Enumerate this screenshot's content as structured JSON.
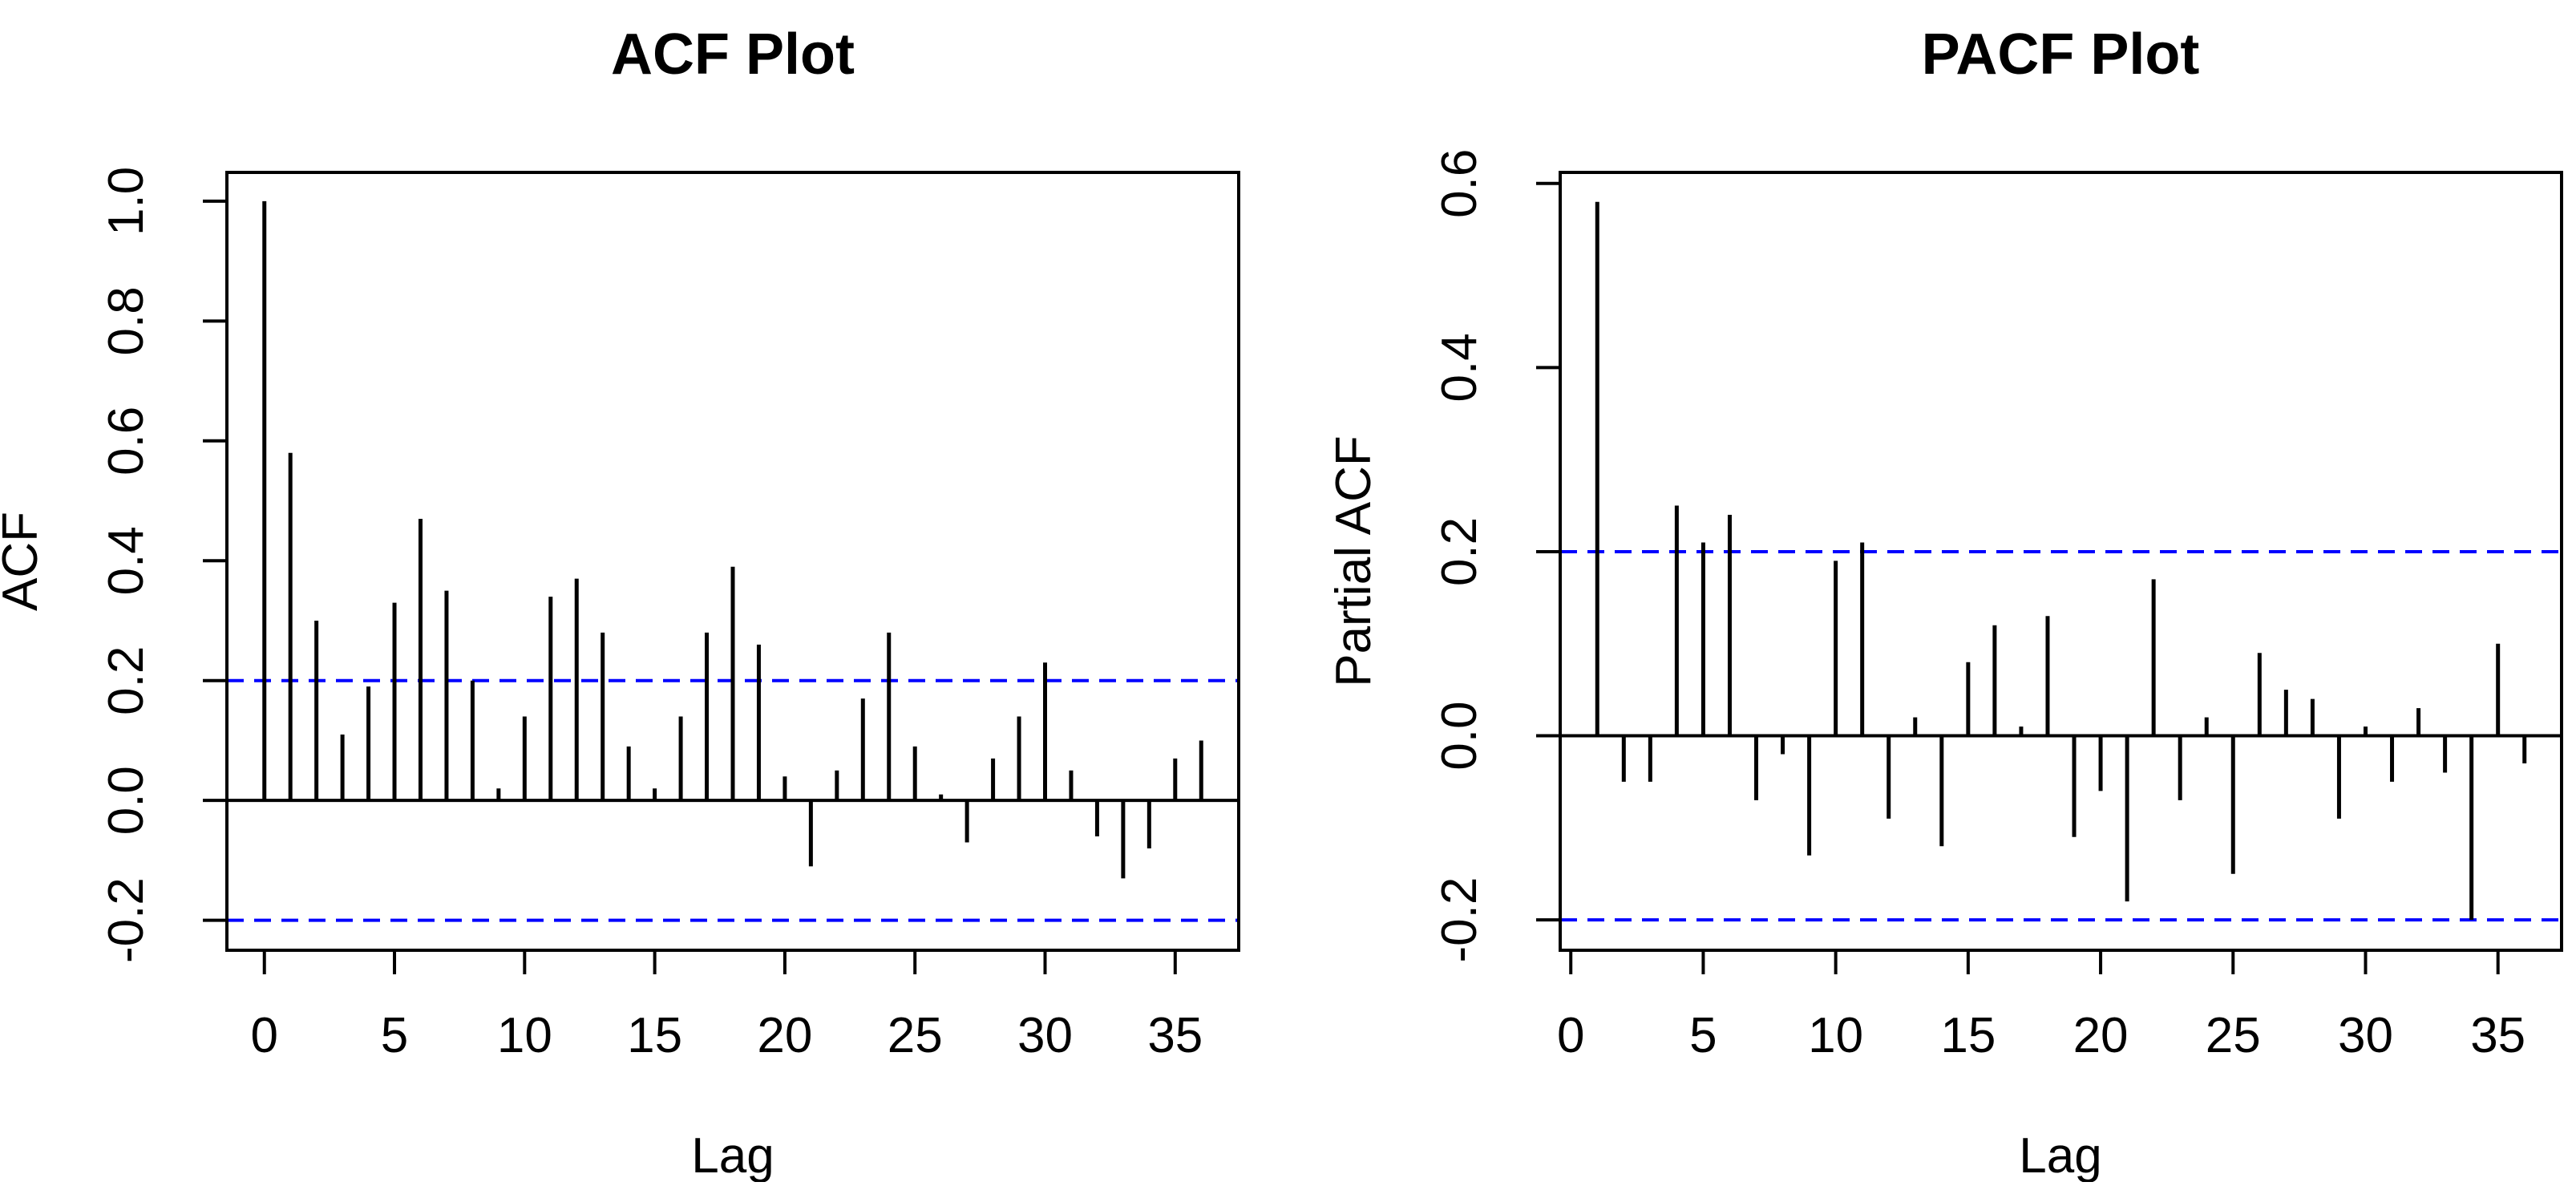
{
  "figure": {
    "background": "#ffffff",
    "bar_color": "#000000",
    "axis_color": "#000000",
    "conf_color": "#0000ff"
  },
  "chart_data": [
    {
      "type": "bar",
      "title": "ACF Plot",
      "xlabel": "Lag",
      "ylabel": "ACF",
      "x": [
        0,
        1,
        2,
        3,
        4,
        5,
        6,
        7,
        8,
        9,
        10,
        11,
        12,
        13,
        14,
        15,
        16,
        17,
        18,
        19,
        20,
        21,
        22,
        23,
        24,
        25,
        26,
        27,
        28,
        29,
        30,
        31,
        32,
        33,
        34,
        35,
        36
      ],
      "values": [
        1.0,
        0.58,
        0.3,
        0.11,
        0.19,
        0.33,
        0.47,
        0.35,
        0.2,
        0.02,
        0.14,
        0.34,
        0.37,
        0.28,
        0.09,
        0.02,
        0.14,
        0.28,
        0.39,
        0.26,
        0.04,
        -0.11,
        0.05,
        0.17,
        0.28,
        0.09,
        0.01,
        -0.07,
        0.07,
        0.14,
        0.23,
        0.05,
        -0.06,
        -0.13,
        -0.08,
        0.07,
        0.1
      ],
      "xticks": [
        "0",
        "5",
        "10",
        "15",
        "20",
        "25",
        "30",
        "35"
      ],
      "yticks": [
        "1.0",
        "0.8",
        "0.6",
        "0.4",
        "0.2",
        "0.0",
        "-0.2"
      ],
      "xlim": [
        -1.44,
        37.44
      ],
      "ylim": [
        -0.25,
        1.048
      ],
      "conf_bounds": [
        0.2,
        -0.2
      ],
      "conf_line_style": "dashed",
      "conf_color": "#0000ff",
      "bar_color": "#000000",
      "grid": false,
      "legend": null
    },
    {
      "type": "bar",
      "title": "PACF Plot",
      "xlabel": "Lag",
      "ylabel": "Partial ACF",
      "x": [
        1,
        2,
        3,
        4,
        5,
        6,
        7,
        8,
        9,
        10,
        11,
        12,
        13,
        14,
        15,
        16,
        17,
        18,
        19,
        20,
        21,
        22,
        23,
        24,
        25,
        26,
        27,
        28,
        29,
        30,
        31,
        32,
        33,
        34,
        35,
        36
      ],
      "values": [
        0.58,
        -0.05,
        -0.05,
        0.25,
        0.21,
        0.24,
        -0.07,
        -0.02,
        -0.13,
        0.19,
        0.21,
        -0.09,
        0.02,
        -0.12,
        0.08,
        0.12,
        0.01,
        0.13,
        -0.11,
        -0.06,
        -0.18,
        0.17,
        -0.07,
        0.02,
        -0.15,
        0.09,
        0.05,
        0.04,
        -0.09,
        0.01,
        -0.05,
        0.03,
        -0.04,
        -0.2,
        0.1,
        -0.03
      ],
      "xticks": [
        "0",
        "5",
        "10",
        "15",
        "20",
        "25",
        "30",
        "35"
      ],
      "yticks": [
        "0.6",
        "0.4",
        "0.2",
        "0.0",
        "-0.2"
      ],
      "xlim": [
        -0.4,
        37.4
      ],
      "ylim": [
        -0.233,
        0.612
      ],
      "conf_bounds": [
        0.2,
        -0.2
      ],
      "conf_line_style": "dashed",
      "conf_color": "#0000ff",
      "bar_color": "#000000",
      "grid": false,
      "legend": null
    }
  ]
}
